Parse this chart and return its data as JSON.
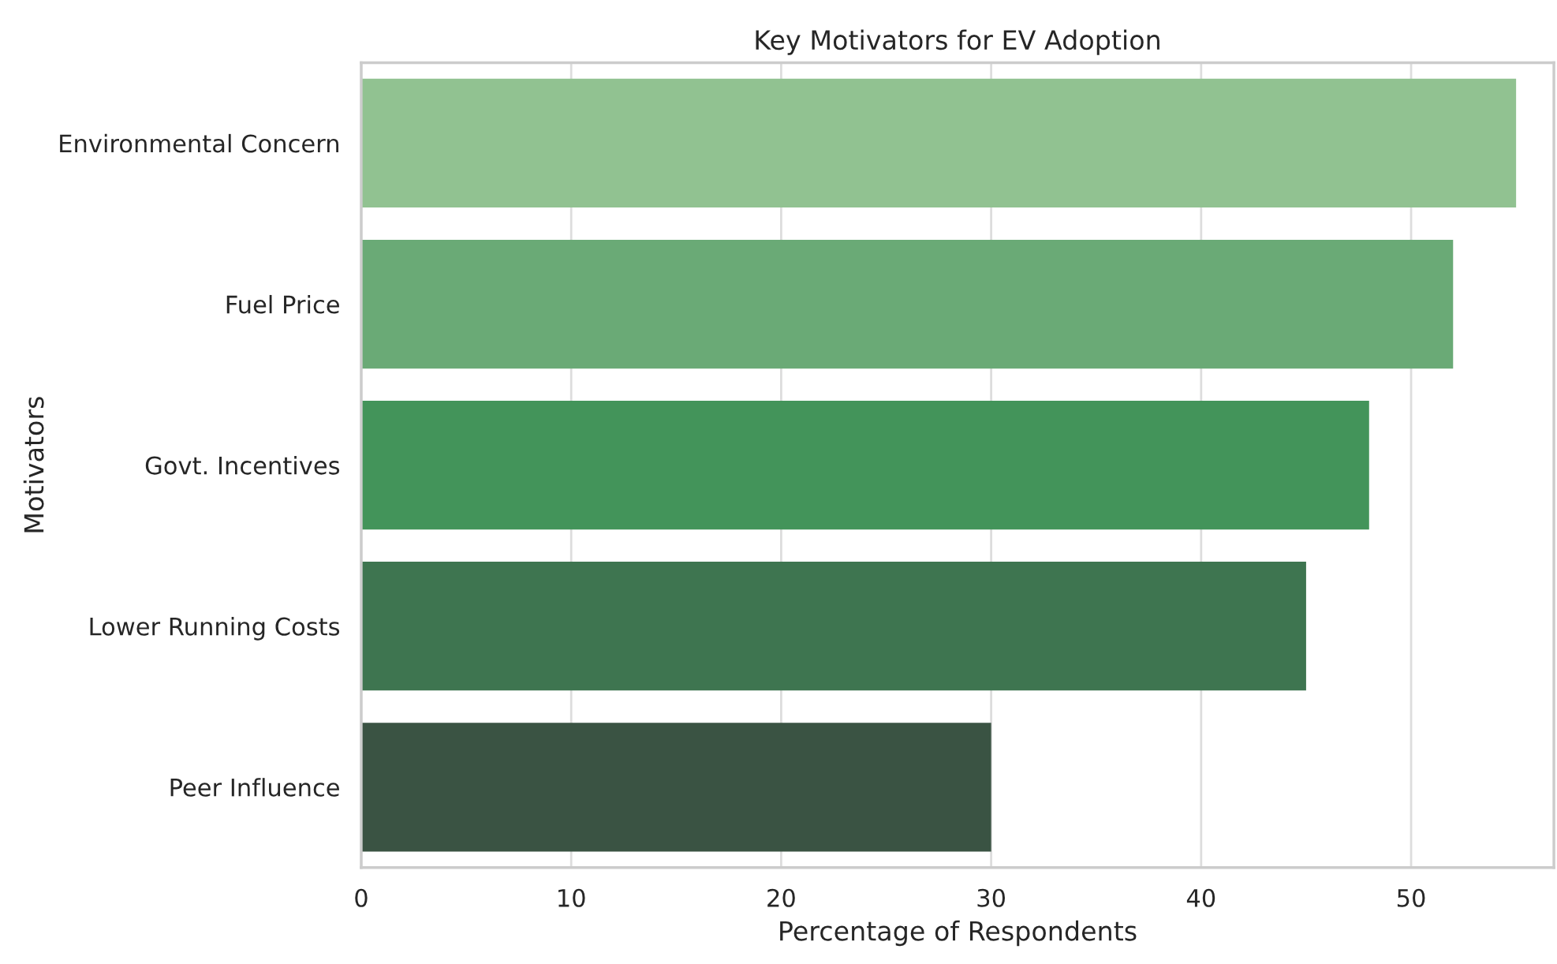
{
  "chart_data": {
    "type": "bar",
    "orientation": "horizontal",
    "title": "Key Motivators for EV Adoption",
    "xlabel": "Percentage of Respondents",
    "ylabel": "Motivators",
    "categories": [
      "Environmental Concern",
      "Fuel Price",
      "Govt. Incentives",
      "Lower Running Costs",
      "Peer Influence"
    ],
    "values": [
      55,
      52,
      48,
      45,
      30
    ],
    "colors": [
      "#91c291",
      "#6aaa76",
      "#43945a",
      "#3e7550",
      "#3a5343"
    ],
    "xlim": [
      0,
      56.8
    ],
    "xticks": [
      0,
      10,
      20,
      30,
      40,
      50
    ],
    "grid": "x"
  }
}
